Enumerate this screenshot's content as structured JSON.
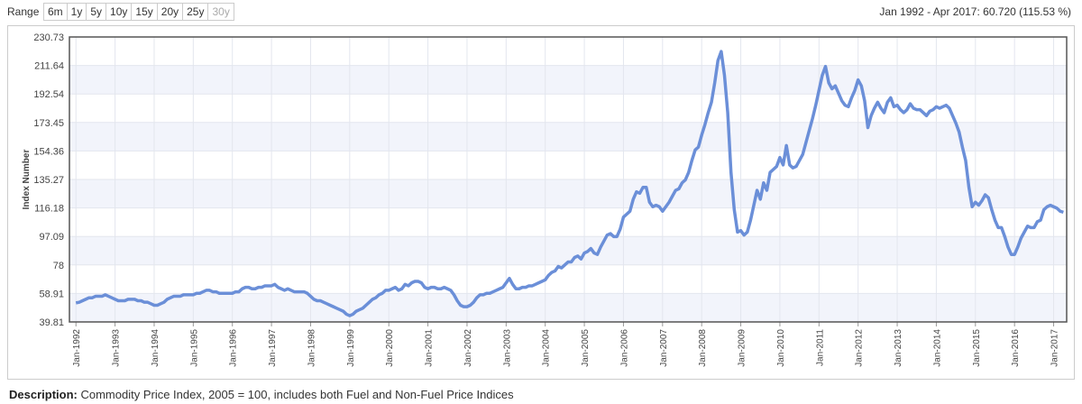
{
  "range_selector": {
    "label": "Range",
    "buttons": [
      "6m",
      "1y",
      "5y",
      "10y",
      "15y",
      "20y",
      "25y",
      "30y"
    ],
    "disabled": [
      "30y"
    ]
  },
  "summary": "Jan 1992 - Apr 2017: 60.720 (115.53 %)",
  "description": {
    "label": "Description:",
    "text": "Commodity Price Index, 2005 = 100, includes both Fuel and Non-Fuel Price Indices"
  },
  "chart_data": {
    "type": "line",
    "ylabel": "Index Number",
    "ylim": [
      39.81,
      230.73
    ],
    "yticks": [
      39.81,
      58.91,
      78,
      97.09,
      116.18,
      135.27,
      154.36,
      173.45,
      192.54,
      211.64,
      230.73
    ],
    "grid": true,
    "categories": [
      "Jan-1992",
      null,
      null,
      null,
      null,
      null,
      null,
      null,
      null,
      null,
      null,
      null,
      "Jan-1993",
      null,
      null,
      null,
      null,
      null,
      null,
      null,
      null,
      null,
      null,
      null,
      "Jan-1994",
      null,
      null,
      null,
      null,
      null,
      null,
      null,
      null,
      null,
      null,
      null,
      "Jan-1995",
      null,
      null,
      null,
      null,
      null,
      null,
      null,
      null,
      null,
      null,
      null,
      "Jan-1996",
      null,
      null,
      null,
      null,
      null,
      null,
      null,
      null,
      null,
      null,
      null,
      "Jan-1997",
      null,
      null,
      null,
      null,
      null,
      null,
      null,
      null,
      null,
      null,
      null,
      "Jan-1998",
      null,
      null,
      null,
      null,
      null,
      null,
      null,
      null,
      null,
      null,
      null,
      "Jan-1999",
      null,
      null,
      null,
      null,
      null,
      null,
      null,
      null,
      null,
      null,
      null,
      "Jan-2000",
      null,
      null,
      null,
      null,
      null,
      null,
      null,
      null,
      null,
      null,
      null,
      "Jan-2001",
      null,
      null,
      null,
      null,
      null,
      null,
      null,
      null,
      null,
      null,
      null,
      "Jan-2002",
      null,
      null,
      null,
      null,
      null,
      null,
      null,
      null,
      null,
      null,
      null,
      "Jan-2003",
      null,
      null,
      null,
      null,
      null,
      null,
      null,
      null,
      null,
      null,
      null,
      "Jan-2004",
      null,
      null,
      null,
      null,
      null,
      null,
      null,
      null,
      null,
      null,
      null,
      "Jan-2005",
      null,
      null,
      null,
      null,
      null,
      null,
      null,
      null,
      null,
      null,
      null,
      "Jan-2006",
      null,
      null,
      null,
      null,
      null,
      null,
      null,
      null,
      null,
      null,
      null,
      "Jan-2007",
      null,
      null,
      null,
      null,
      null,
      null,
      null,
      null,
      null,
      null,
      null,
      "Jan-2008",
      null,
      null,
      null,
      null,
      null,
      null,
      null,
      null,
      null,
      null,
      null,
      "Jan-2009",
      null,
      null,
      null,
      null,
      null,
      null,
      null,
      null,
      null,
      null,
      null,
      "Jan-2010",
      null,
      null,
      null,
      null,
      null,
      null,
      null,
      null,
      null,
      null,
      null,
      "Jan-2011",
      null,
      null,
      null,
      null,
      null,
      null,
      null,
      null,
      null,
      null,
      null,
      "Jan-2012",
      null,
      null,
      null,
      null,
      null,
      null,
      null,
      null,
      null,
      null,
      null,
      "Jan-2013",
      null,
      null,
      null,
      null,
      null,
      null,
      null,
      null,
      null,
      null,
      null,
      "Jan-2014",
      null,
      null,
      null,
      null,
      null,
      null,
      null,
      null,
      null,
      null,
      null,
      "Jan-2015",
      null,
      null,
      null,
      null,
      null,
      null,
      null,
      null,
      null,
      null,
      null,
      "Jan-2016",
      null,
      null,
      null,
      null,
      null,
      null,
      null,
      null,
      null,
      null,
      null,
      "Jan-2017",
      null,
      null,
      null
    ],
    "series": [
      {
        "name": "Commodity Price Index",
        "color": "#6b8fd8",
        "values": [
          52.56,
          53,
          54,
          55,
          56,
          56,
          57,
          57,
          57,
          58,
          57,
          56,
          55,
          54,
          54,
          54,
          55,
          55,
          55,
          54,
          54,
          53,
          53,
          52,
          51,
          51,
          52,
          53,
          55,
          56,
          57,
          57,
          57,
          58,
          58,
          58,
          58,
          59,
          59,
          60,
          61,
          61,
          60,
          60,
          59,
          59,
          59,
          59,
          59,
          60,
          60,
          62,
          63,
          63,
          62,
          62,
          63,
          63,
          64,
          64,
          64,
          65,
          63,
          62,
          61,
          62,
          61,
          60,
          60,
          60,
          60,
          59,
          57,
          55,
          54,
          54,
          53,
          52,
          51,
          50,
          49,
          48,
          47,
          45,
          44,
          45,
          47,
          48,
          49,
          51,
          53,
          55,
          56,
          58,
          59,
          61,
          61,
          62,
          63,
          61,
          62,
          65,
          64,
          66,
          67,
          67,
          66,
          63,
          62,
          63,
          63,
          62,
          62,
          63,
          62,
          61,
          58,
          54,
          51,
          50,
          50,
          51,
          53,
          56,
          58,
          58,
          59,
          59,
          60,
          61,
          62,
          63,
          66,
          69,
          65,
          62,
          62,
          63,
          63,
          64,
          64,
          65,
          66,
          67,
          68,
          71,
          73,
          74,
          77,
          76,
          78,
          80,
          80,
          83,
          84,
          82,
          86,
          87,
          89,
          86,
          85,
          90,
          94,
          98,
          99,
          97,
          97,
          102,
          110,
          112,
          114,
          122,
          127,
          126,
          130,
          130,
          120,
          117,
          118,
          117,
          114,
          117,
          120,
          124,
          128,
          129,
          133,
          135,
          140,
          148,
          155,
          157,
          165,
          172,
          180,
          187,
          200,
          215,
          221,
          205,
          180,
          140,
          115,
          100,
          101,
          98,
          100,
          108,
          118,
          128,
          122,
          133,
          128,
          140,
          142,
          144,
          150,
          145,
          158,
          145,
          143,
          144,
          148,
          152,
          160,
          168,
          176,
          185,
          195,
          205,
          211,
          200,
          196,
          198,
          193,
          188,
          185,
          184,
          190,
          195,
          202,
          198,
          188,
          170,
          178,
          183,
          187,
          183,
          180,
          187,
          190,
          184,
          185,
          182,
          180,
          182,
          186,
          183,
          182,
          182,
          180,
          178,
          181,
          182,
          184,
          183,
          184,
          185,
          183,
          178,
          173,
          167,
          157,
          148,
          130,
          117,
          120,
          118,
          121,
          125,
          123,
          115,
          108,
          103,
          103,
          97,
          90,
          85,
          85,
          90,
          96,
          100,
          104,
          103,
          103,
          107,
          108,
          115,
          117,
          118,
          117,
          116,
          114,
          113.28
        ]
      }
    ]
  }
}
